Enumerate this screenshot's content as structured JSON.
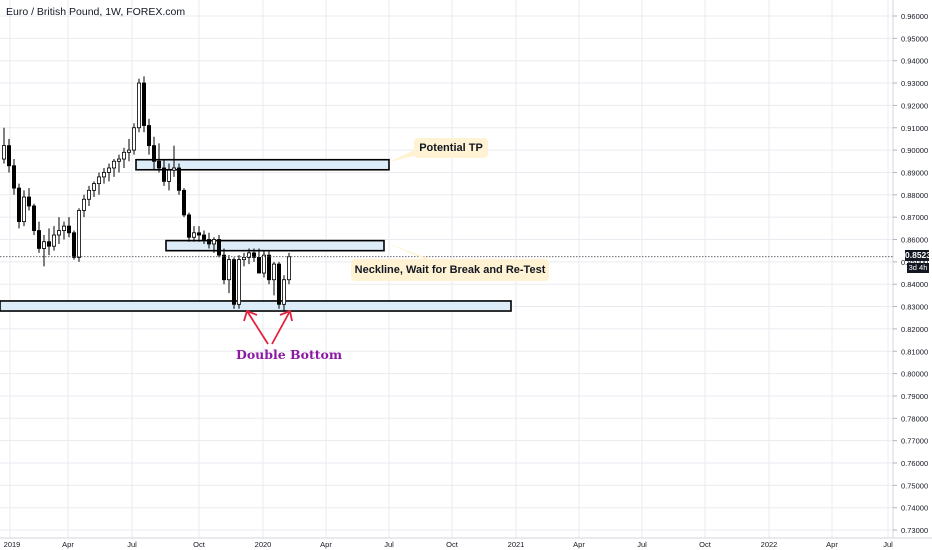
{
  "header": {
    "title": "Euro / British Pound, 1W, FOREX.com"
  },
  "price_label": {
    "value": "0.85231",
    "countdown": "3d 4h"
  },
  "annotations": {
    "potential_tp": "Potential TP",
    "neckline": "Neckline, Wait for Break and Re-Test",
    "double_bottom": "Double Bottom"
  },
  "colors": {
    "bull": "#ffffff",
    "bear": "#000000",
    "zone_fill": "#dcecf8",
    "zone_stroke": "#000000",
    "callout_bg": "#fff3d4",
    "arrow": "#e3223d",
    "double_bottom_text": "#8b1aa3",
    "grid": "#e9ebf0"
  },
  "chart_data": {
    "type": "candlestick",
    "symbol": "EURGBP",
    "timeframe": "1W",
    "source": "FOREX.com",
    "ylim": [
      0.725,
      0.965
    ],
    "y_ticks": [
      "0.96000",
      "0.95000",
      "0.94000",
      "0.93000",
      "0.92000",
      "0.91000",
      "0.90000",
      "0.89000",
      "0.88000",
      "0.87000",
      "0.86000",
      "0.85000",
      "0.84000",
      "0.83000",
      "0.82000",
      "0.81000",
      "0.80000",
      "0.79000",
      "0.78000",
      "0.77000",
      "0.76000",
      "0.75000",
      "0.74000",
      "0.73000"
    ],
    "x_ticks": [
      "2019",
      "Apr",
      "Jul",
      "Oct",
      "2020",
      "Apr",
      "Jul",
      "Oct",
      "2021",
      "Apr",
      "Jul",
      "Oct",
      "2022",
      "Apr",
      "Jul"
    ],
    "last_price": 0.85231,
    "candles": [
      {
        "o": 0.896,
        "h": 0.91,
        "l": 0.894,
        "c": 0.902
      },
      {
        "o": 0.902,
        "h": 0.905,
        "l": 0.89,
        "c": 0.893
      },
      {
        "o": 0.893,
        "h": 0.896,
        "l": 0.88,
        "c": 0.883
      },
      {
        "o": 0.883,
        "h": 0.885,
        "l": 0.865,
        "c": 0.868
      },
      {
        "o": 0.868,
        "h": 0.882,
        "l": 0.866,
        "c": 0.879
      },
      {
        "o": 0.879,
        "h": 0.883,
        "l": 0.873,
        "c": 0.875
      },
      {
        "o": 0.875,
        "h": 0.876,
        "l": 0.862,
        "c": 0.864
      },
      {
        "o": 0.864,
        "h": 0.868,
        "l": 0.854,
        "c": 0.856
      },
      {
        "o": 0.856,
        "h": 0.862,
        "l": 0.848,
        "c": 0.859
      },
      {
        "o": 0.859,
        "h": 0.865,
        "l": 0.853,
        "c": 0.857
      },
      {
        "o": 0.857,
        "h": 0.866,
        "l": 0.855,
        "c": 0.862
      },
      {
        "o": 0.862,
        "h": 0.87,
        "l": 0.858,
        "c": 0.864
      },
      {
        "o": 0.864,
        "h": 0.868,
        "l": 0.86,
        "c": 0.866
      },
      {
        "o": 0.866,
        "h": 0.87,
        "l": 0.861,
        "c": 0.863
      },
      {
        "o": 0.863,
        "h": 0.864,
        "l": 0.851,
        "c": 0.852
      },
      {
        "o": 0.852,
        "h": 0.874,
        "l": 0.85,
        "c": 0.873
      },
      {
        "o": 0.873,
        "h": 0.88,
        "l": 0.87,
        "c": 0.878
      },
      {
        "o": 0.878,
        "h": 0.884,
        "l": 0.875,
        "c": 0.882
      },
      {
        "o": 0.882,
        "h": 0.886,
        "l": 0.879,
        "c": 0.885
      },
      {
        "o": 0.885,
        "h": 0.89,
        "l": 0.88,
        "c": 0.888
      },
      {
        "o": 0.888,
        "h": 0.892,
        "l": 0.885,
        "c": 0.89
      },
      {
        "o": 0.89,
        "h": 0.894,
        "l": 0.886,
        "c": 0.892
      },
      {
        "o": 0.892,
        "h": 0.896,
        "l": 0.888,
        "c": 0.895
      },
      {
        "o": 0.895,
        "h": 0.898,
        "l": 0.89,
        "c": 0.896
      },
      {
        "o": 0.896,
        "h": 0.901,
        "l": 0.892,
        "c": 0.899
      },
      {
        "o": 0.899,
        "h": 0.905,
        "l": 0.895,
        "c": 0.9
      },
      {
        "o": 0.9,
        "h": 0.912,
        "l": 0.898,
        "c": 0.91
      },
      {
        "o": 0.91,
        "h": 0.932,
        "l": 0.908,
        "c": 0.93
      },
      {
        "o": 0.93,
        "h": 0.933,
        "l": 0.908,
        "c": 0.911
      },
      {
        "o": 0.911,
        "h": 0.914,
        "l": 0.898,
        "c": 0.902
      },
      {
        "o": 0.902,
        "h": 0.906,
        "l": 0.891,
        "c": 0.895
      },
      {
        "o": 0.895,
        "h": 0.903,
        "l": 0.89,
        "c": 0.892
      },
      {
        "o": 0.892,
        "h": 0.896,
        "l": 0.884,
        "c": 0.886
      },
      {
        "o": 0.886,
        "h": 0.894,
        "l": 0.882,
        "c": 0.891
      },
      {
        "o": 0.891,
        "h": 0.902,
        "l": 0.888,
        "c": 0.892
      },
      {
        "o": 0.892,
        "h": 0.894,
        "l": 0.88,
        "c": 0.882
      },
      {
        "o": 0.882,
        "h": 0.883,
        "l": 0.87,
        "c": 0.871
      },
      {
        "o": 0.871,
        "h": 0.872,
        "l": 0.859,
        "c": 0.861
      },
      {
        "o": 0.861,
        "h": 0.866,
        "l": 0.859,
        "c": 0.863
      },
      {
        "o": 0.863,
        "h": 0.866,
        "l": 0.859,
        "c": 0.862
      },
      {
        "o": 0.862,
        "h": 0.864,
        "l": 0.858,
        "c": 0.86
      },
      {
        "o": 0.86,
        "h": 0.863,
        "l": 0.856,
        "c": 0.858
      },
      {
        "o": 0.858,
        "h": 0.861,
        "l": 0.854,
        "c": 0.86
      },
      {
        "o": 0.86,
        "h": 0.862,
        "l": 0.852,
        "c": 0.853
      },
      {
        "o": 0.853,
        "h": 0.856,
        "l": 0.84,
        "c": 0.842
      },
      {
        "o": 0.842,
        "h": 0.853,
        "l": 0.836,
        "c": 0.851
      },
      {
        "o": 0.851,
        "h": 0.852,
        "l": 0.829,
        "c": 0.831
      },
      {
        "o": 0.831,
        "h": 0.853,
        "l": 0.829,
        "c": 0.851
      },
      {
        "o": 0.851,
        "h": 0.854,
        "l": 0.848,
        "c": 0.852
      },
      {
        "o": 0.852,
        "h": 0.856,
        "l": 0.849,
        "c": 0.854
      },
      {
        "o": 0.854,
        "h": 0.856,
        "l": 0.85,
        "c": 0.852
      },
      {
        "o": 0.852,
        "h": 0.856,
        "l": 0.845,
        "c": 0.845
      },
      {
        "o": 0.845,
        "h": 0.855,
        "l": 0.843,
        "c": 0.853
      },
      {
        "o": 0.853,
        "h": 0.855,
        "l": 0.84,
        "c": 0.842
      },
      {
        "o": 0.842,
        "h": 0.85,
        "l": 0.835,
        "c": 0.849
      },
      {
        "o": 0.849,
        "h": 0.85,
        "l": 0.829,
        "c": 0.831
      },
      {
        "o": 0.831,
        "h": 0.844,
        "l": 0.828,
        "c": 0.842
      },
      {
        "o": 0.842,
        "h": 0.854,
        "l": 0.84,
        "c": 0.8523
      }
    ],
    "zones": [
      {
        "name": "potential-tp-zone",
        "top": 0.8957,
        "bottom": 0.8912,
        "x_start": "Aug 2019",
        "x_end": "Jul 2020"
      },
      {
        "name": "neckline-zone",
        "top": 0.8595,
        "bottom": 0.855,
        "x_start": "Sep 2019",
        "x_end": "Jul 2020"
      },
      {
        "name": "support-zone",
        "top": 0.8325,
        "bottom": 0.828,
        "x_start": "Jan 2019",
        "x_end": "Jan 2021"
      }
    ]
  }
}
